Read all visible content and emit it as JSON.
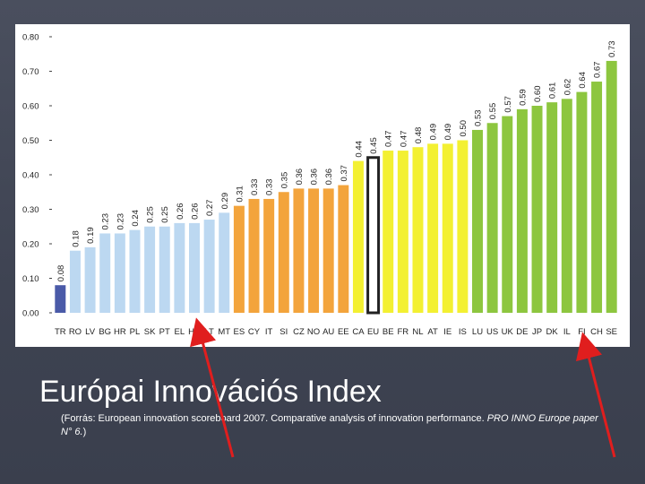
{
  "slide": {
    "title": "Európai Innovációs Index",
    "source_main": "(Forrás: European innovation scoreboard 2007. Comparative analysis of innovation performance. ",
    "source_italic": "PRO INNO Europe paper N° 6.",
    "source_close": ")"
  },
  "colors": {
    "background": "#434857",
    "dark_blue": "#4a5aa8",
    "light_blue": "#bcd8f1",
    "orange": "#f3a43c",
    "yellow": "#f3f032",
    "green": "#8dc63f",
    "highlight_border": "#222222",
    "arrow": "#e01e1e"
  },
  "annotations": {
    "arrows": [
      {
        "points_to": "HU",
        "color": "#e01e1e"
      },
      {
        "points_to": "FI",
        "color": "#e01e1e"
      }
    ]
  },
  "chart_data": {
    "type": "bar",
    "title": "",
    "xlabel": "",
    "ylabel": "",
    "ylim": [
      0,
      0.8
    ],
    "yticks": [
      "0.00",
      "0.10",
      "0.20",
      "0.30",
      "0.40",
      "0.50",
      "0.60",
      "0.70",
      "0.80"
    ],
    "grid": false,
    "categories": [
      "TR",
      "RO",
      "LV",
      "BG",
      "HR",
      "PL",
      "SK",
      "PT",
      "EL",
      "HU",
      "LT",
      "MT",
      "ES",
      "CY",
      "IT",
      "SI",
      "CZ",
      "NO",
      "AU",
      "EE",
      "CA",
      "EU",
      "BE",
      "FR",
      "NL",
      "AT",
      "IE",
      "IS",
      "LU",
      "US",
      "UK",
      "DE",
      "JP",
      "DK",
      "IL",
      "FI",
      "CH",
      "SE"
    ],
    "values": [
      0.08,
      0.18,
      0.19,
      0.23,
      0.23,
      0.24,
      0.25,
      0.25,
      0.26,
      0.26,
      0.27,
      0.29,
      0.31,
      0.33,
      0.33,
      0.35,
      0.36,
      0.36,
      0.36,
      0.37,
      0.44,
      0.45,
      0.47,
      0.47,
      0.48,
      0.49,
      0.49,
      0.5,
      0.53,
      0.55,
      0.57,
      0.59,
      0.6,
      0.61,
      0.62,
      0.64,
      0.67,
      0.73
    ],
    "value_labels": [
      "0.08",
      "0.18",
      "0.19",
      "0.23",
      "0.23",
      "0.24",
      "0.25",
      "0.25",
      "0.26",
      "0.26",
      "0.27",
      "0.29",
      "0.31",
      "0.33",
      "0.33",
      "0.35",
      "0.36",
      "0.36",
      "0.36",
      "0.37",
      "0.44",
      "0.45",
      "0.47",
      "0.47",
      "0.48",
      "0.49",
      "0.49",
      "0.50",
      "0.53",
      "0.55",
      "0.57",
      "0.59",
      "0.60",
      "0.61",
      "0.62",
      "0.64",
      "0.67",
      "0.73"
    ],
    "bar_groups": [
      "dark_blue",
      "light_blue",
      "light_blue",
      "light_blue",
      "light_blue",
      "light_blue",
      "light_blue",
      "light_blue",
      "light_blue",
      "light_blue",
      "light_blue",
      "light_blue",
      "orange",
      "orange",
      "orange",
      "orange",
      "orange",
      "orange",
      "orange",
      "orange",
      "yellow",
      "highlight",
      "yellow",
      "yellow",
      "yellow",
      "yellow",
      "yellow",
      "yellow",
      "green",
      "green",
      "green",
      "green",
      "green",
      "green",
      "green",
      "green",
      "green",
      "green"
    ],
    "highlighted_category": "EU"
  }
}
